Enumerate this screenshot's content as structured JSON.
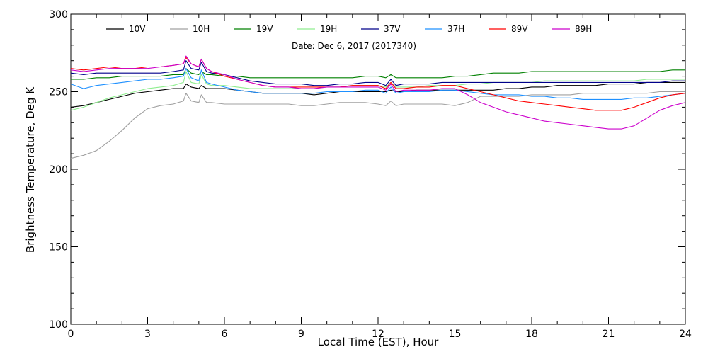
{
  "chart_data": {
    "type": "line",
    "title": "Date: Dec  6, 2017 (2017340)",
    "xlabel": "Local Time (EST), Hour",
    "ylabel": "Brightness Temperature, Deg K",
    "xlim": [
      0,
      24
    ],
    "ylim": [
      100,
      300
    ],
    "xticks": [
      0,
      3,
      6,
      9,
      12,
      15,
      18,
      21,
      24
    ],
    "yticks": [
      100,
      150,
      200,
      250,
      300
    ],
    "grid": false,
    "legend_position": "top",
    "x": [
      0,
      0.5,
      1,
      1.5,
      2,
      2.5,
      3,
      3.5,
      4,
      4.4,
      4.5,
      4.7,
      5,
      5.1,
      5.3,
      5.5,
      6,
      6.5,
      7,
      7.5,
      8,
      8.5,
      9,
      9.5,
      10,
      10.5,
      11,
      11.5,
      12,
      12.3,
      12.5,
      12.7,
      13,
      13.5,
      14,
      14.5,
      15,
      15.5,
      16,
      16.5,
      17,
      17.5,
      18,
      18.5,
      19,
      19.5,
      20,
      20.5,
      21,
      21.5,
      22,
      22.5,
      23,
      23.5,
      24
    ],
    "series": [
      {
        "name": "10V",
        "color": "#000000",
        "values": [
          240,
          241,
          243,
          245,
          247,
          249,
          250,
          251,
          252,
          252,
          255,
          253,
          252,
          254,
          252,
          252,
          252,
          251,
          250,
          249,
          249,
          249,
          249,
          248,
          249,
          250,
          250,
          250,
          250,
          250,
          251,
          250,
          250,
          251,
          251,
          251,
          251,
          251,
          251,
          251,
          252,
          252,
          253,
          253,
          254,
          254,
          254,
          254,
          255,
          255,
          255,
          256,
          256,
          256,
          256
        ]
      },
      {
        "name": "10H",
        "color": "#a0a0a0",
        "values": [
          207,
          209,
          212,
          218,
          225,
          233,
          239,
          241,
          242,
          244,
          249,
          244,
          243,
          248,
          243,
          243,
          242,
          242,
          242,
          242,
          242,
          242,
          241,
          241,
          242,
          243,
          243,
          243,
          242,
          241,
          244,
          241,
          242,
          242,
          242,
          242,
          241,
          243,
          247,
          247,
          247,
          247,
          248,
          248,
          248,
          248,
          249,
          249,
          249,
          249,
          249,
          249,
          250,
          250,
          250
        ]
      },
      {
        "name": "19V",
        "color": "#008000",
        "values": [
          258,
          258,
          259,
          259,
          260,
          260,
          260,
          260,
          261,
          261,
          265,
          262,
          261,
          263,
          261,
          261,
          260,
          260,
          259,
          259,
          259,
          259,
          259,
          259,
          259,
          259,
          259,
          260,
          260,
          259,
          261,
          259,
          259,
          259,
          259,
          259,
          260,
          260,
          261,
          262,
          262,
          262,
          263,
          263,
          263,
          263,
          263,
          263,
          263,
          263,
          263,
          263,
          263,
          264,
          264
        ]
      },
      {
        "name": "19H",
        "color": "#90ee90",
        "values": [
          238,
          240,
          243,
          246,
          248,
          250,
          252,
          253,
          254,
          256,
          263,
          256,
          255,
          261,
          255,
          254,
          254,
          253,
          252,
          252,
          252,
          252,
          252,
          252,
          253,
          253,
          254,
          254,
          254,
          253,
          256,
          253,
          253,
          253,
          254,
          254,
          254,
          255,
          255,
          256,
          256,
          256,
          256,
          257,
          257,
          257,
          257,
          257,
          257,
          257,
          257,
          258,
          258,
          258,
          258
        ]
      },
      {
        "name": "37V",
        "color": "#00008b",
        "values": [
          262,
          261,
          262,
          262,
          262,
          262,
          262,
          262,
          263,
          264,
          270,
          265,
          264,
          269,
          263,
          262,
          261,
          259,
          257,
          256,
          255,
          255,
          255,
          254,
          254,
          255,
          255,
          256,
          256,
          254,
          258,
          254,
          255,
          255,
          255,
          256,
          256,
          256,
          256,
          256,
          256,
          256,
          256,
          256,
          256,
          256,
          256,
          256,
          256,
          256,
          256,
          256,
          256,
          257,
          257
        ]
      },
      {
        "name": "37H",
        "color": "#1e90ff",
        "values": [
          255,
          252,
          254,
          255,
          256,
          257,
          258,
          258,
          259,
          260,
          265,
          259,
          257,
          264,
          256,
          255,
          253,
          251,
          250,
          249,
          249,
          249,
          249,
          249,
          250,
          250,
          250,
          251,
          251,
          249,
          253,
          249,
          250,
          250,
          250,
          251,
          251,
          250,
          249,
          248,
          248,
          248,
          247,
          247,
          246,
          246,
          245,
          245,
          245,
          245,
          246,
          246,
          247,
          248,
          249
        ]
      },
      {
        "name": "89V",
        "color": "#ff0000",
        "values": [
          265,
          264,
          265,
          266,
          265,
          265,
          266,
          266,
          267,
          268,
          272,
          268,
          266,
          271,
          265,
          263,
          260,
          258,
          256,
          254,
          253,
          253,
          253,
          253,
          253,
          253,
          254,
          254,
          254,
          252,
          256,
          252,
          252,
          253,
          253,
          254,
          254,
          252,
          250,
          248,
          246,
          244,
          243,
          242,
          241,
          240,
          239,
          238,
          238,
          238,
          240,
          243,
          246,
          248,
          249
        ]
      },
      {
        "name": "89H",
        "color": "#cc00cc",
        "values": [
          264,
          263,
          264,
          265,
          265,
          265,
          265,
          266,
          267,
          268,
          273,
          268,
          266,
          271,
          265,
          263,
          261,
          258,
          256,
          254,
          253,
          253,
          252,
          252,
          253,
          253,
          253,
          253,
          253,
          251,
          255,
          250,
          251,
          251,
          251,
          252,
          252,
          248,
          243,
          240,
          237,
          235,
          233,
          231,
          230,
          229,
          228,
          227,
          226,
          226,
          228,
          233,
          238,
          241,
          243
        ]
      }
    ]
  }
}
